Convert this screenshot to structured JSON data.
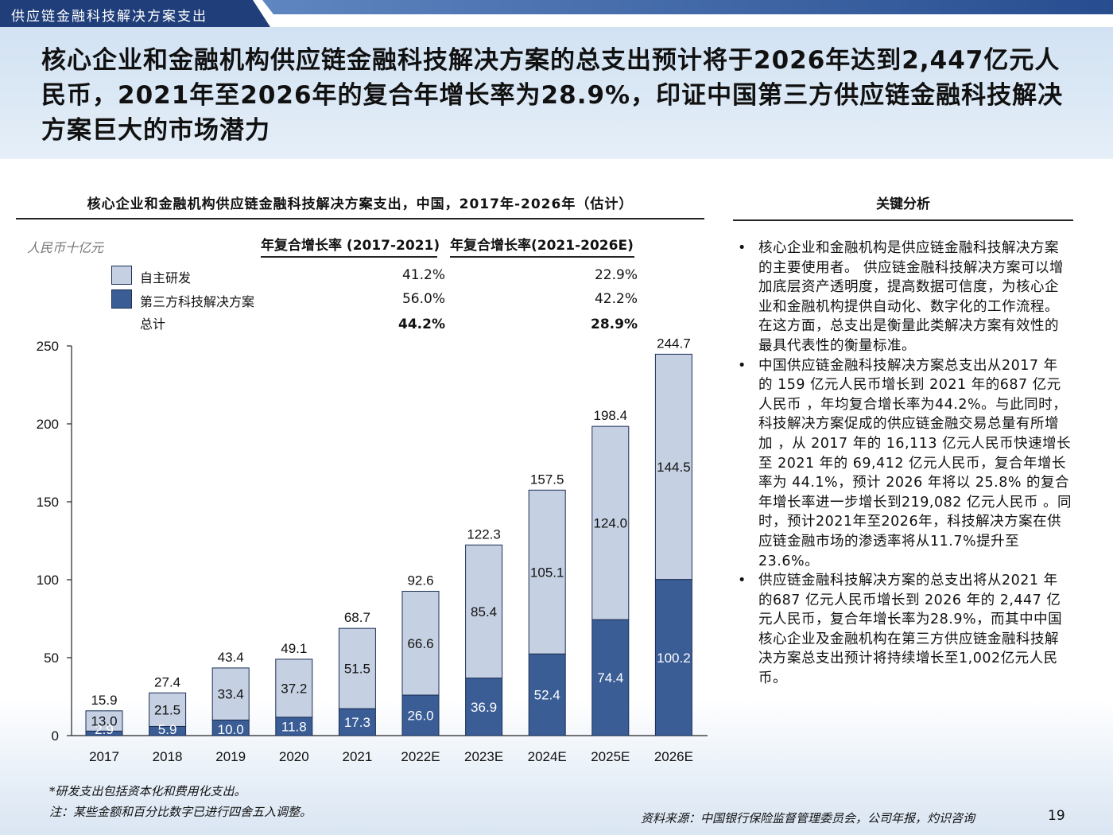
{
  "header": {
    "section_tab": "供应链金融科技解决方案支出",
    "headline": "核心企业和金融机构供应链金融科技解决方案的总支出预计将于2026年达到2,447亿元人民币，2021年至2026年的复合年增长率为28.9%，印证中国第三方供应链金融科技解决方案巨大的市场潜力"
  },
  "chart_panel": {
    "title": "核心企业和金融机构供应链金融科技解决方案支出，中国，2017年-2026年（估计）",
    "unit": "人民币十亿元",
    "cagr_header_1": "年复合增长率 (2017-2021)",
    "cagr_header_2": "年复合增长率(2021-2026E)",
    "legend": [
      {
        "label": "自主研发",
        "cagr_1": "41.2%",
        "cagr_2": "22.9%",
        "color": "#c5d1e2"
      },
      {
        "label": "第三方科技解决方案",
        "cagr_1": "56.0%",
        "cagr_2": "42.2%",
        "color": "#3a5d96"
      },
      {
        "label": "总计",
        "cagr_1": "44.2%",
        "cagr_2": "28.9%"
      }
    ]
  },
  "chart_data": {
    "type": "bar",
    "stacked": true,
    "categories": [
      "2017",
      "2018",
      "2019",
      "2020",
      "2021",
      "2022E",
      "2023E",
      "2024E",
      "2025E",
      "2026E"
    ],
    "series": [
      {
        "name": "第三方科技解决方案",
        "values": [
          2.9,
          5.9,
          10.0,
          11.8,
          17.3,
          26.0,
          36.9,
          52.4,
          74.4,
          100.2
        ],
        "color": "#3a5d96"
      },
      {
        "name": "自主研发",
        "values": [
          13.0,
          21.5,
          33.4,
          37.2,
          51.5,
          66.6,
          85.4,
          105.1,
          124.0,
          144.5
        ],
        "color": "#c5d1e2"
      }
    ],
    "series_labels": [
      [
        "2.9",
        "5.9",
        "10.0",
        "11.8",
        "17.3",
        "26.0",
        "36.9",
        "52.4",
        "74.4",
        "100.2"
      ],
      [
        "13.0",
        "21.5",
        "33.4",
        "37.2",
        "51.5",
        "66.6",
        "85.4",
        "105.1",
        "124.0",
        "144.5"
      ]
    ],
    "totals": [
      15.9,
      27.4,
      43.4,
      49.1,
      68.7,
      92.6,
      122.3,
      157.5,
      198.4,
      244.7
    ],
    "total_labels": [
      "15.9",
      "27.4",
      "43.4",
      "49.1",
      "68.7",
      "92.6",
      "122.3",
      "157.5",
      "198.4",
      "244.7"
    ],
    "yticks": [
      "0",
      "50",
      "100",
      "150",
      "200",
      "250"
    ],
    "ylim": [
      0,
      250
    ],
    "legend_position": "top-left",
    "grid": false
  },
  "analysis": {
    "title": "关键分析",
    "bullets": [
      "核心企业和金融机构是供应链金融科技解决方案的主要使用者。 供应链金融科技解决方案可以增加底层资产透明度，提高数据可信度，为核心企业和金融机构提供自动化、数字化的工作流程。 在这方面，总支出是衡量此类解决方案有效性的最具代表性的衡量标准。",
      "中国供应链金融科技解决方案总支出从2017 年的 159 亿元人民币增长到 2021 年的687 亿元人民币 ，年均复合增长率为44.2%。与此同时，科技解决方案促成的供应链金融交易总量有所增加 ，从 2017 年的 16,113 亿元人民币快速增长至 2021 年的 69,412 亿元人民币，复合年增长率为 44.1%，预计 2026 年将以 25.8% 的复合年增长率进一步增长到219,082 亿元人民币 。同时，预计2021年至2026年，科技解决方案在供应链金融市场的渗透率将从11.7%提升至23.6%。",
      "供应链金融科技解决方案的总支出将从2021 年的687 亿元人民币增长到 2026 年的 2,447 亿元人民币，复合年增长率为28.9%，而其中中国核心企业及金融机构在第三方供应链金融科技解决方案总支出预计将持续增长至1,002亿元人民币。"
    ]
  },
  "footer": {
    "note1": "*研发支出包括资本化和费用化支出。",
    "note2": "注：某些金额和百分比数字已进行四舍五入调整。",
    "source": "资料来源：中国银行保险监督管理委员会，公司年报，灼识咨询",
    "page": "19"
  }
}
